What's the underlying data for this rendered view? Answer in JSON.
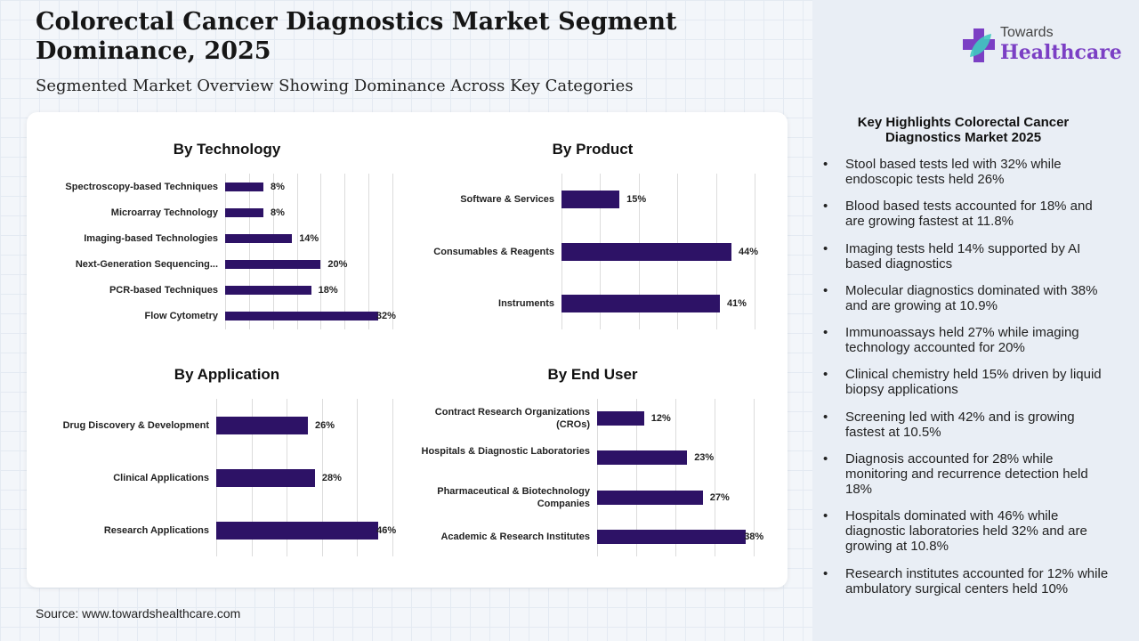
{
  "header": {
    "title": "Colorectal Cancer Diagnostics Market Segment Dominance, 2025",
    "subtitle": "Segmented Market Overview Showing Dominance Across Key Categories"
  },
  "source": "Source: www.towardshealthcare.com",
  "logo": {
    "line1": "Towards",
    "line2": "Healthcare",
    "color": "#7b3fc4"
  },
  "highlights": {
    "title": "Key Highlights Colorectal Cancer Diagnostics Market 2025",
    "items": [
      "Stool based tests led with 32% while endoscopic tests held 26%",
      "Blood based tests accounted for 18% and are growing fastest at 11.8%",
      "Imaging tests held 14% supported by AI based diagnostics",
      "Molecular diagnostics dominated with 38% and are growing at 10.9%",
      "Immunoassays held 27% while imaging technology accounted for 20%",
      "Clinical chemistry held 15% driven by liquid biopsy applications",
      "Screening led with 42% and is growing fastest at 10.5%",
      "Diagnosis accounted for 28% while monitoring and recurrence detection held 18%",
      "Hospitals dominated with 46% while diagnostic laboratories held 32% and are growing at 10.8%",
      "Research institutes accounted for 12% while ambulatory surgical centers held 10%"
    ]
  },
  "chart_data": [
    {
      "type": "bar",
      "orientation": "horizontal",
      "title": "By Technology",
      "bar_color": "#2d1266",
      "xlim": [
        0,
        35
      ],
      "categories": [
        "Spectroscopy-based Techniques",
        "Microarray Technology",
        "Imaging-based Technologies",
        "Next-Generation Sequencing...",
        "PCR-based Techniques",
        "Flow Cytometry"
      ],
      "values": [
        8,
        8,
        14,
        20,
        18,
        32
      ],
      "labels": [
        "8%",
        "8%",
        "14%",
        "20%",
        "18%",
        "32%"
      ]
    },
    {
      "type": "bar",
      "orientation": "horizontal",
      "title": "By Product",
      "bar_color": "#2d1266",
      "xlim": [
        0,
        50
      ],
      "categories": [
        "Software & Services",
        "Consumables & Reagents",
        "Instruments"
      ],
      "values": [
        15,
        44,
        41
      ],
      "labels": [
        "15%",
        "44%",
        "41%"
      ]
    },
    {
      "type": "bar",
      "orientation": "horizontal",
      "title": "By Application",
      "bar_color": "#2d1266",
      "xlim": [
        0,
        50
      ],
      "categories": [
        "Drug Discovery & Development",
        "Clinical Applications",
        "Research Applications"
      ],
      "values": [
        26,
        28,
        46
      ],
      "labels": [
        "26%",
        "28%",
        "46%"
      ]
    },
    {
      "type": "bar",
      "orientation": "horizontal",
      "title": "By End User",
      "bar_color": "#2d1266",
      "xlim": [
        0,
        40
      ],
      "categories": [
        "Contract Research Organizations (CROs)",
        "Hospitals & Diagnostic Laboratories",
        "Pharmaceutical & Biotechnology Companies",
        "Academic & Research Institutes"
      ],
      "values": [
        12,
        23,
        27,
        38
      ],
      "labels": [
        "12%",
        "23%",
        "27%",
        "38%"
      ]
    }
  ]
}
